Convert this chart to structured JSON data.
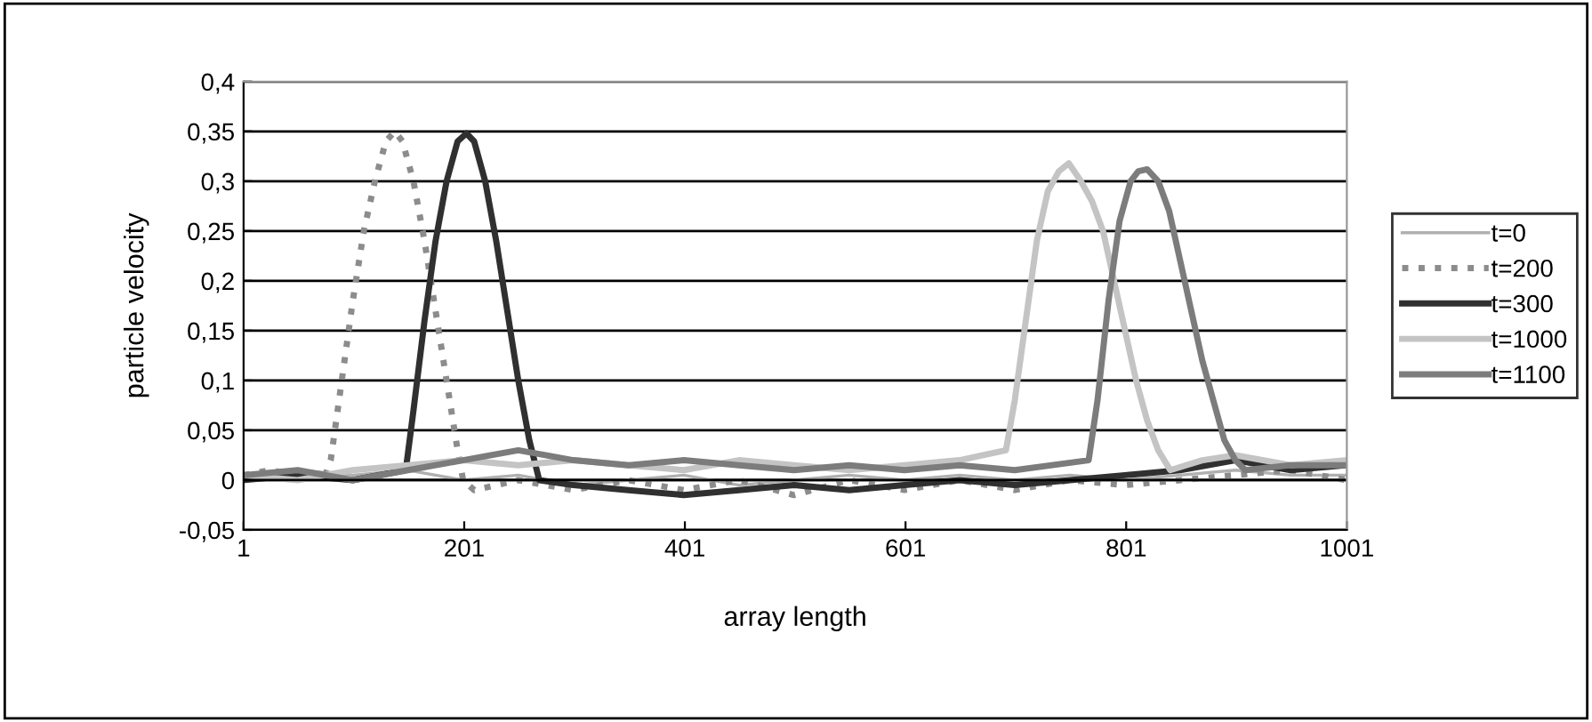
{
  "chart_data": {
    "type": "line",
    "xlabel": "array length",
    "ylabel": "particle velocity",
    "xlim": [
      1,
      1001
    ],
    "xticks": [
      1,
      201,
      401,
      601,
      801,
      1001
    ],
    "ylim": [
      -0.05,
      0.4
    ],
    "yticks": [
      {
        "value": -0.05,
        "label": "-0,05"
      },
      0,
      {
        "value": 0.05,
        "label": "0,05"
      },
      {
        "value": 0.1,
        "label": "0,1"
      },
      {
        "value": 0.15,
        "label": "0,15"
      },
      {
        "value": 0.2,
        "label": "0,2"
      },
      {
        "value": 0.25,
        "label": "0,25"
      },
      {
        "value": 0.3,
        "label": "0,3"
      },
      {
        "value": 0.35,
        "label": "0,35"
      },
      {
        "value": 0.4,
        "label": "0,4"
      }
    ],
    "grid": "y",
    "legend": "right",
    "marker": "none",
    "series": [
      {
        "name": "t=0",
        "color": "#b0b0b0",
        "line_style": "solid",
        "x": [
          1,
          50,
          100,
          150,
          200,
          250,
          300,
          350,
          400,
          450,
          500,
          550,
          600,
          650,
          700,
          750,
          800,
          850,
          900,
          950,
          1001
        ],
        "values": [
          0.005,
          0.01,
          0.005,
          0.01,
          0.0,
          0.005,
          -0.005,
          0.0,
          0.005,
          -0.005,
          0.0,
          0.005,
          0.0,
          0.005,
          0.0,
          0.005,
          0.0,
          0.005,
          0.01,
          0.005,
          0.005
        ]
      },
      {
        "name": "t=200",
        "color": "#8c8c8c",
        "line_style": "dotted",
        "x": [
          1,
          25,
          50,
          75,
          80,
          90,
          100,
          110,
          120,
          130,
          138,
          145,
          155,
          165,
          175,
          185,
          195,
          200,
          210,
          250,
          300,
          350,
          400,
          450,
          500,
          550,
          600,
          650,
          700,
          750,
          800,
          850,
          900,
          950,
          1001
        ],
        "values": [
          0.005,
          0.01,
          0.005,
          0.005,
          0.02,
          0.1,
          0.18,
          0.25,
          0.3,
          0.34,
          0.35,
          0.34,
          0.3,
          0.24,
          0.17,
          0.1,
          0.03,
          0.0,
          -0.01,
          0.0,
          -0.01,
          0.0,
          -0.01,
          0.0,
          -0.015,
          0.0,
          -0.01,
          0.0,
          -0.01,
          0.0,
          -0.005,
          0.0,
          0.005,
          0.01,
          0.0
        ]
      },
      {
        "name": "t=300",
        "color": "#303030",
        "line_style": "solid",
        "x": [
          1,
          50,
          100,
          148,
          155,
          165,
          175,
          185,
          195,
          203,
          210,
          220,
          230,
          240,
          250,
          260,
          269,
          300,
          350,
          400,
          450,
          500,
          550,
          600,
          650,
          700,
          750,
          800,
          850,
          900,
          950,
          1001
        ],
        "values": [
          0.0,
          0.005,
          0.0,
          0.01,
          0.07,
          0.16,
          0.24,
          0.3,
          0.34,
          0.348,
          0.34,
          0.3,
          0.24,
          0.17,
          0.1,
          0.04,
          0.0,
          -0.005,
          -0.01,
          -0.015,
          -0.01,
          -0.005,
          -0.01,
          -0.005,
          0.0,
          -0.005,
          0.0,
          0.005,
          0.01,
          0.02,
          0.01,
          0.015
        ]
      },
      {
        "name": "t=1000",
        "color": "#c4c4c4",
        "line_style": "solid",
        "x": [
          1,
          50,
          100,
          150,
          200,
          250,
          300,
          350,
          400,
          450,
          500,
          550,
          600,
          650,
          692,
          700,
          710,
          720,
          730,
          740,
          749,
          760,
          770,
          780,
          790,
          800,
          810,
          820,
          830,
          841,
          870,
          900,
          950,
          1001
        ],
        "values": [
          0.005,
          0.0,
          0.01,
          0.015,
          0.02,
          0.015,
          0.02,
          0.015,
          0.01,
          0.02,
          0.015,
          0.01,
          0.015,
          0.02,
          0.03,
          0.08,
          0.16,
          0.24,
          0.29,
          0.31,
          0.318,
          0.3,
          0.28,
          0.25,
          0.2,
          0.15,
          0.1,
          0.06,
          0.03,
          0.01,
          0.02,
          0.025,
          0.015,
          0.02
        ]
      },
      {
        "name": "t=1100",
        "color": "#7c7c7c",
        "line_style": "solid",
        "x": [
          1,
          50,
          100,
          150,
          200,
          250,
          300,
          350,
          400,
          450,
          500,
          550,
          600,
          650,
          700,
          767,
          775,
          785,
          795,
          805,
          812,
          820,
          830,
          840,
          850,
          860,
          870,
          880,
          890,
          900,
          909,
          950,
          1001
        ],
        "values": [
          0.005,
          0.01,
          0.0,
          0.01,
          0.02,
          0.03,
          0.02,
          0.015,
          0.02,
          0.015,
          0.01,
          0.015,
          0.01,
          0.015,
          0.01,
          0.02,
          0.08,
          0.18,
          0.26,
          0.3,
          0.31,
          0.312,
          0.3,
          0.27,
          0.22,
          0.17,
          0.12,
          0.08,
          0.04,
          0.02,
          0.01,
          0.015,
          0.015
        ]
      }
    ]
  }
}
